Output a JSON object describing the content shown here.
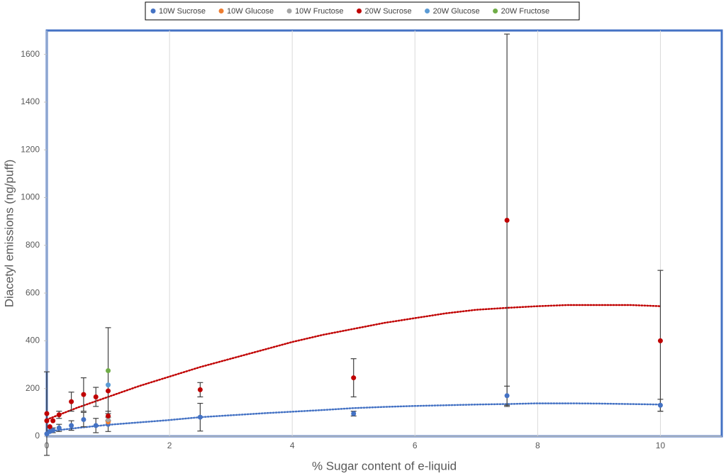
{
  "chart_data": {
    "type": "scatter",
    "x_label": "% Sugar content of e-liquid",
    "y_label": "Diacetyl emissions (ng/puff)",
    "xlim": [
      0,
      11
    ],
    "ylim": [
      0,
      1700
    ],
    "xticks": [
      0,
      2,
      4,
      6,
      8,
      10
    ],
    "yticks": [
      0,
      200,
      400,
      600,
      800,
      1000,
      1200,
      1400,
      1600
    ],
    "grid": "x",
    "legend": "top",
    "series": [
      {
        "name": "10W Sucrose",
        "color": "#4472c4",
        "x": [
          0,
          0.05,
          0.1,
          0.2,
          0.4,
          0.6,
          0.8,
          1,
          2.5,
          5,
          7.5,
          10
        ],
        "values": [
          10,
          20,
          25,
          35,
          45,
          70,
          45,
          50,
          80,
          95,
          170,
          130
        ],
        "errors": [
          null,
          null,
          10,
          15,
          20,
          30,
          30,
          30,
          58,
          10,
          40,
          25
        ]
      },
      {
        "name": "10W Glucose",
        "color": "#ed7d31",
        "x": [
          1
        ],
        "values": [
          60
        ],
        "errors": [
          null
        ]
      },
      {
        "name": "10W Fructose",
        "color": "#a5a5a5",
        "x": [
          1
        ],
        "values": [
          70
        ],
        "errors": [
          null
        ]
      },
      {
        "name": "20W Sucrose",
        "color": "#c00000",
        "x": [
          0,
          0,
          0.05,
          0.1,
          0.2,
          0.4,
          0.6,
          0.8,
          1,
          1,
          2.5,
          5,
          7.5,
          10
        ],
        "values": [
          95,
          65,
          40,
          65,
          90,
          145,
          175,
          165,
          190,
          85,
          195,
          245,
          905,
          400
        ],
        "errors": [
          175,
          null,
          null,
          null,
          15,
          40,
          70,
          40,
          null,
          20,
          30,
          80,
          780,
          295
        ]
      },
      {
        "name": "20W Glucose",
        "color": "#5b9bd5",
        "x": [
          1
        ],
        "values": [
          215
        ],
        "errors": [
          null
        ]
      },
      {
        "name": "20W Fructose",
        "color": "#70ad47",
        "x": [
          1
        ],
        "values": [
          275
        ],
        "errors": [
          180
        ]
      }
    ],
    "trendlines": [
      {
        "color": "#c00000",
        "x": [
          0,
          0.5,
          1,
          1.5,
          2,
          2.5,
          3,
          3.5,
          4,
          4.5,
          5,
          5.5,
          6,
          6.5,
          7,
          7.5,
          8,
          8.5,
          9,
          9.5,
          10
        ],
        "values": [
          70,
          120,
          165,
          210,
          250,
          290,
          325,
          360,
          395,
          425,
          450,
          475,
          495,
          515,
          530,
          538,
          545,
          550,
          550,
          550,
          545
        ]
      },
      {
        "color": "#4472c4",
        "x": [
          0,
          0.5,
          1,
          1.5,
          2,
          2.5,
          3,
          3.5,
          4,
          4.5,
          5,
          5.5,
          6,
          6.5,
          7,
          7.5,
          8,
          8.5,
          9,
          9.5,
          10
        ],
        "values": [
          20,
          35,
          48,
          58,
          68,
          80,
          88,
          96,
          103,
          110,
          118,
          123,
          127,
          130,
          133,
          135,
          138,
          138,
          137,
          135,
          133
        ]
      }
    ]
  }
}
